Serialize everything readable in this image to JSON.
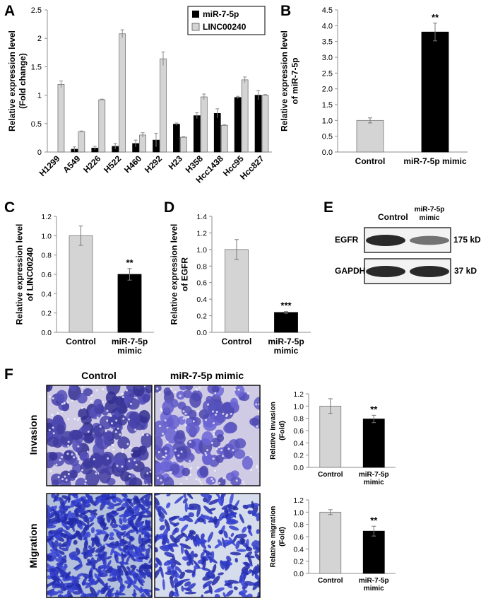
{
  "panels": {
    "A": "A",
    "B": "B",
    "C": "C",
    "D": "D",
    "E": "E",
    "F": "F"
  },
  "colors": {
    "lincoo240": "#d4d4d4",
    "mir": "#000000",
    "control": "#d4d4d4",
    "mimic": "#000000"
  },
  "chart_data": [
    {
      "id": "A",
      "type": "bar",
      "categories": [
        "H1299",
        "A549",
        "H226",
        "H522",
        "H460",
        "H292",
        "H23",
        "H358",
        "Hcc1438",
        "Hcc95",
        "Hcc827"
      ],
      "series": [
        {
          "name": "miR-7-5p",
          "values": [
            0.0,
            0.05,
            0.07,
            0.1,
            0.15,
            0.21,
            0.49,
            0.64,
            0.68,
            0.96,
            1.0
          ],
          "errors": [
            0,
            0.04,
            0.03,
            0.05,
            0.06,
            0.12,
            0.02,
            0.05,
            0.08,
            0.02,
            0.08
          ]
        },
        {
          "name": "LINC00240",
          "values": [
            1.19,
            0.36,
            0.92,
            2.08,
            0.3,
            1.64,
            0.26,
            0.97,
            0.47,
            1.27,
            1.0
          ],
          "errors": [
            0.06,
            0.01,
            0.01,
            0.07,
            0.04,
            0.12,
            0.01,
            0.05,
            0.01,
            0.05,
            0.01
          ]
        }
      ],
      "ylabel": "Relative expression level (Fold change)",
      "ylabel_lines": [
        "Relative expression level",
        "(Fold change)"
      ],
      "ylim": [
        0,
        2.5
      ],
      "yticks": [
        "0",
        "0.5",
        "1",
        "1.5",
        "2",
        "2.5"
      ],
      "legend_position": "top-right"
    },
    {
      "id": "B",
      "type": "bar",
      "categories": [
        "Control",
        "miR-7-5p mimic"
      ],
      "values": [
        1.0,
        3.8
      ],
      "errors": [
        0.08,
        0.28
      ],
      "annotations": [
        "",
        "**"
      ],
      "ylabel_lines": [
        "Relative expression level",
        "of miR-7-5p"
      ],
      "ylim": [
        0,
        4.5
      ],
      "yticks": [
        "0.0",
        "0.5",
        "1.0",
        "1.5",
        "2.0",
        "2.5",
        "3.0",
        "3.5",
        "4.0",
        "4.5"
      ]
    },
    {
      "id": "C",
      "type": "bar",
      "categories": [
        "Control",
        "miR-7-5p mimic"
      ],
      "category_lines": [
        [
          "Control"
        ],
        [
          "miR-7-5p",
          "mimic"
        ]
      ],
      "values": [
        1.0,
        0.6
      ],
      "errors": [
        0.1,
        0.06
      ],
      "annotations": [
        "",
        "**"
      ],
      "ylabel_lines": [
        "Relative expression level",
        "of LINC00240"
      ],
      "ylim": [
        0,
        1.2
      ],
      "yticks": [
        "0.0",
        "0.2",
        "0.4",
        "0.6",
        "0.8",
        "1.0",
        "1.2"
      ]
    },
    {
      "id": "D",
      "type": "bar",
      "categories": [
        "Control",
        "miR-7-5p mimic"
      ],
      "category_lines": [
        [
          "Control"
        ],
        [
          "miR-7-5p",
          "mimic"
        ]
      ],
      "values": [
        1.0,
        0.24
      ],
      "errors": [
        0.12,
        0.01
      ],
      "annotations": [
        "",
        "***"
      ],
      "ylabel_lines": [
        "Relative expression level",
        "of EGFR"
      ],
      "ylim": [
        0,
        1.4
      ],
      "yticks": [
        "0.0",
        "0.2",
        "0.4",
        "0.6",
        "0.8",
        "1.0",
        "1.2",
        "1.4"
      ]
    },
    {
      "id": "F-invasion",
      "type": "bar",
      "categories": [
        "Control",
        "miR-7-5p mimic"
      ],
      "category_lines": [
        [
          "Control"
        ],
        [
          "miR-7-5p",
          "mimic"
        ]
      ],
      "values": [
        1.0,
        0.79
      ],
      "errors": [
        0.12,
        0.06
      ],
      "annotations": [
        "",
        "**"
      ],
      "ylabel_lines": [
        "Relative invasion",
        "(Fold)"
      ],
      "ylim": [
        0,
        1.2
      ],
      "yticks": [
        "0.0",
        "0.2",
        "0.4",
        "0.6",
        "0.8",
        "1.0",
        "1.2"
      ]
    },
    {
      "id": "F-migration",
      "type": "bar",
      "categories": [
        "Control",
        "miR-7-5p mimic"
      ],
      "category_lines": [
        [
          "Control"
        ],
        [
          "miR-7-5p",
          "mimic"
        ]
      ],
      "values": [
        1.0,
        0.69
      ],
      "errors": [
        0.04,
        0.08
      ],
      "annotations": [
        "",
        "**"
      ],
      "ylabel_lines": [
        "Relative migration",
        "(Fold)"
      ],
      "ylim": [
        0,
        1.2
      ],
      "yticks": [
        "0.0",
        "0.2",
        "0.4",
        "0.6",
        "0.8",
        "1.0",
        "1.2"
      ]
    }
  ],
  "western_blot": {
    "columns": [
      "Control",
      "miR-7-5p mimic"
    ],
    "column_lines": [
      [
        "Control"
      ],
      [
        "miR-7-5p",
        "mimic"
      ]
    ],
    "rows": [
      {
        "protein": "EGFR",
        "size": "175 kD",
        "intensity": [
          1.0,
          0.45
        ]
      },
      {
        "protein": "GAPDH",
        "size": "37 kD",
        "intensity": [
          1.0,
          1.0
        ]
      }
    ]
  },
  "micrographs": {
    "columns": [
      "Control",
      "miR-7-5p mimic"
    ],
    "rows": [
      "Invasion",
      "Migration"
    ]
  }
}
